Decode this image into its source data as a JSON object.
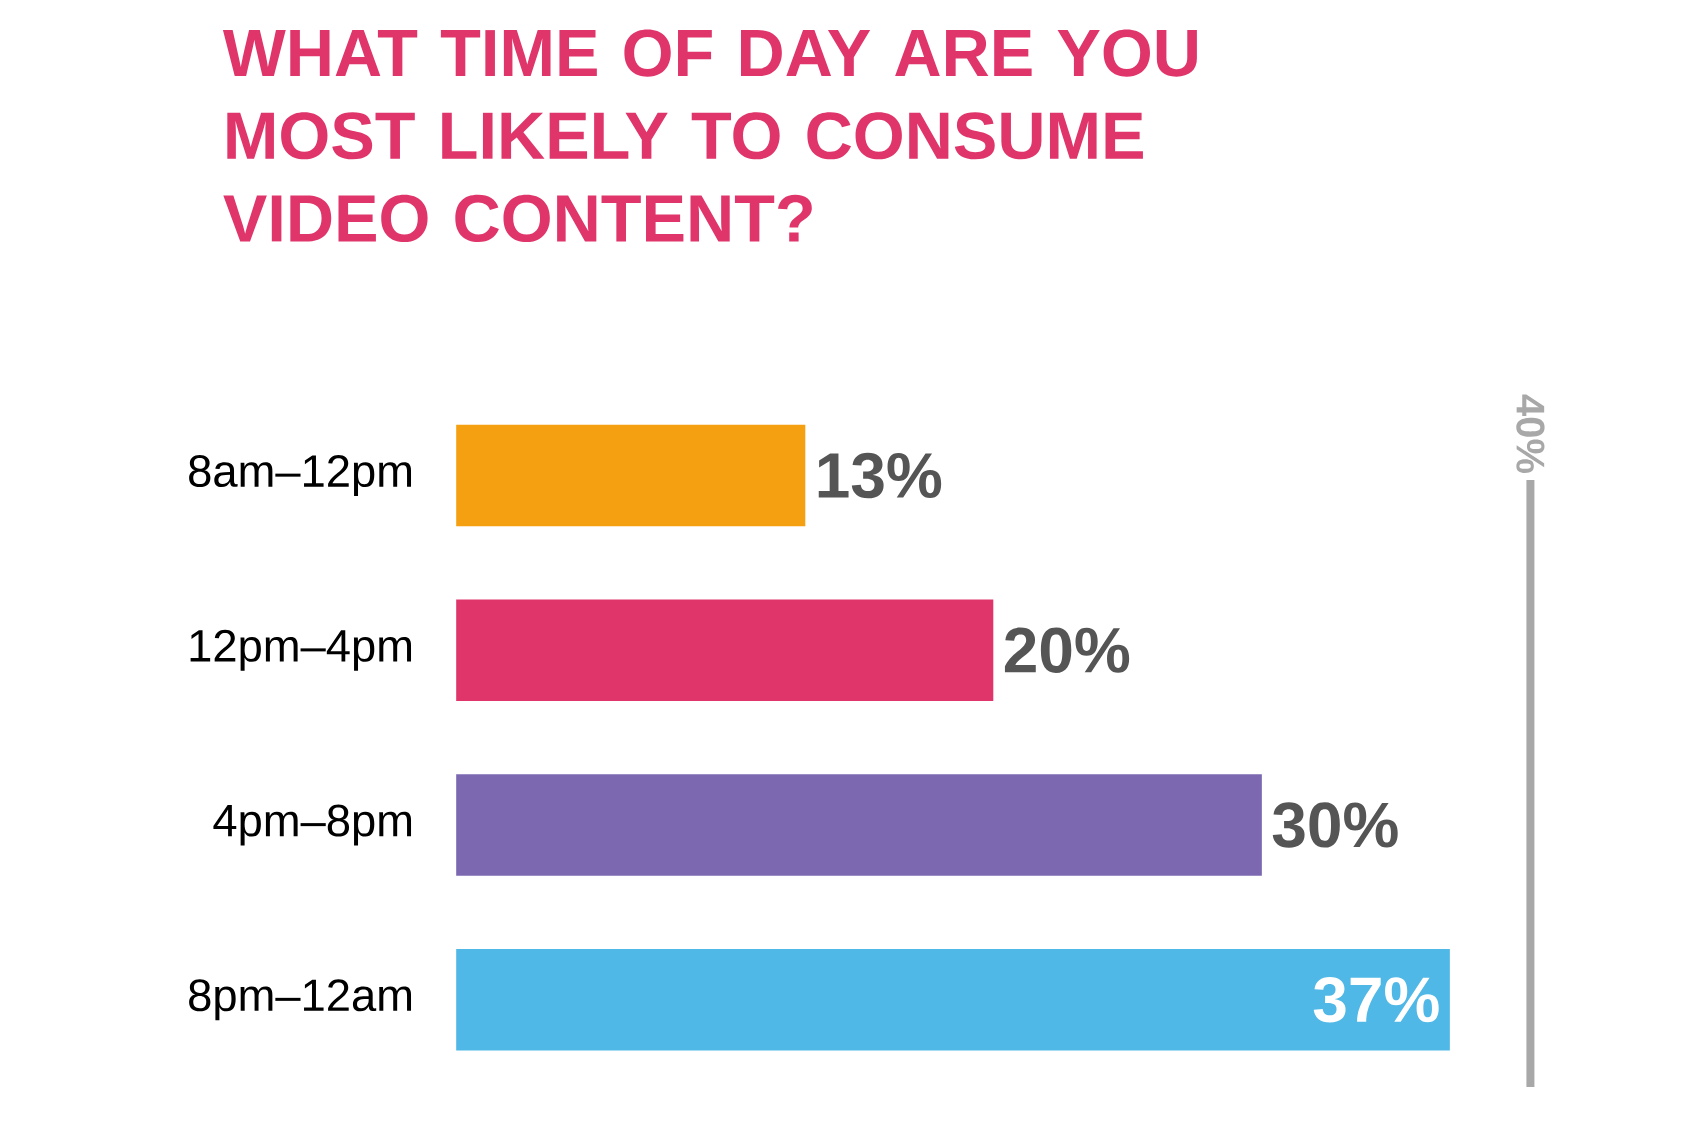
{
  "chart_data": {
    "type": "bar",
    "orientation": "horizontal",
    "title": "WHAT TIME OF DAY ARE YOU MOST LIKELY TO CONSUME VIDEO CONTENT?",
    "categories": [
      "8am–12pm",
      "12pm–4pm",
      "4pm–8pm",
      "8pm–12am"
    ],
    "values": [
      13,
      20,
      30,
      37
    ],
    "colors": [
      "#f5a011",
      "#e0356b",
      "#7b68b0",
      "#4fb8e6"
    ],
    "value_labels": [
      "13%",
      "20%",
      "30%",
      "37%"
    ],
    "ref_lines": [
      {
        "axis": "x",
        "value": 40,
        "label": "40%",
        "color": "#a8a8a8"
      }
    ]
  }
}
